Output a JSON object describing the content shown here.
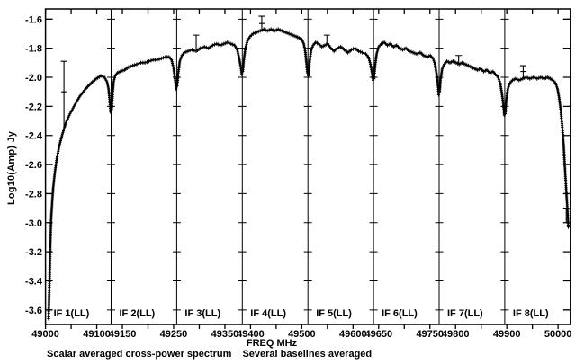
{
  "chart_data": {
    "type": "line",
    "title": "Scalar averaged cross-power spectrum   Several baselines averaged",
    "caption_left": "Scalar averaged cross-power spectrum",
    "caption_right": "Several baselines averaged",
    "xlabel": "FREQ MHz",
    "ylabel": "Log10(Amp) Jy",
    "xlim": [
      49000,
      50024
    ],
    "ylim": [
      -3.7,
      -1.53
    ],
    "grid": "vertical IF-band separator lines with y-level ticks",
    "legend": "none",
    "marker_style": "dense plus-sign channel markers forming a thick black trace",
    "colors": {
      "foreground": "#000000",
      "background": "#ffffff"
    },
    "y_ticks": [
      "-1.6",
      "-1.8",
      "-2.0",
      "-2.2",
      "-2.4",
      "-2.6",
      "-2.8",
      "-3.0",
      "-3.2",
      "-3.4",
      "-3.6"
    ],
    "x_ticks": [
      {
        "f": 49000,
        "label": "49000"
      },
      {
        "f": 49050,
        "label": ""
      },
      {
        "f": 49100,
        "label": "49100"
      },
      {
        "f": 49150,
        "label": "49150"
      },
      {
        "f": 49200,
        "label": ""
      },
      {
        "f": 49250,
        "label": "49250"
      },
      {
        "f": 49300,
        "label": ""
      },
      {
        "f": 49350,
        "label": "49350"
      },
      {
        "f": 49400,
        "label": "49400"
      },
      {
        "f": 49450,
        "label": ""
      },
      {
        "f": 49500,
        "label": "49500"
      },
      {
        "f": 49550,
        "label": ""
      },
      {
        "f": 49600,
        "label": "49600"
      },
      {
        "f": 49650,
        "label": "49650"
      },
      {
        "f": 49700,
        "label": ""
      },
      {
        "f": 49750,
        "label": "49750"
      },
      {
        "f": 49800,
        "label": "49800"
      },
      {
        "f": 49850,
        "label": ""
      },
      {
        "f": 49900,
        "label": "49900"
      },
      {
        "f": 49950,
        "label": ""
      },
      {
        "f": 50000,
        "label": "50000"
      }
    ],
    "if_bands": [
      {
        "name": "IF 1(LL)",
        "f_start": 49000,
        "f_end": 49128,
        "points": [
          [
            49006,
            -3.66
          ],
          [
            49007,
            -3.52
          ],
          [
            49008,
            -3.38
          ],
          [
            49009,
            -3.22
          ],
          [
            49010,
            -3.08
          ],
          [
            49011,
            -2.97
          ],
          [
            49013,
            -2.86
          ],
          [
            49015,
            -2.76
          ],
          [
            49018,
            -2.66
          ],
          [
            49022,
            -2.56
          ],
          [
            49027,
            -2.47
          ],
          [
            49033,
            -2.39
          ],
          [
            49040,
            -2.31
          ],
          [
            49048,
            -2.25
          ],
          [
            49057,
            -2.19
          ],
          [
            49067,
            -2.13
          ],
          [
            49078,
            -2.08
          ],
          [
            49089,
            -2.04
          ],
          [
            49099,
            -2.01
          ],
          [
            49108,
            -1.99
          ],
          [
            49115,
            -2.0
          ],
          [
            49120,
            -2.03
          ],
          [
            49123,
            -2.08
          ],
          [
            49125,
            -2.15
          ],
          [
            49127,
            -2.24
          ]
        ]
      },
      {
        "name": "IF 2(LL)",
        "f_start": 49128,
        "f_end": 49256,
        "points": [
          [
            49129,
            -2.23
          ],
          [
            49131,
            -2.12
          ],
          [
            49133,
            -2.03
          ],
          [
            49136,
            -1.99
          ],
          [
            49140,
            -1.97
          ],
          [
            49146,
            -1.96
          ],
          [
            49154,
            -1.95
          ],
          [
            49162,
            -1.93
          ],
          [
            49170,
            -1.92
          ],
          [
            49178,
            -1.91
          ],
          [
            49186,
            -1.9
          ],
          [
            49194,
            -1.9
          ],
          [
            49202,
            -1.89
          ],
          [
            49210,
            -1.88
          ],
          [
            49218,
            -1.88
          ],
          [
            49226,
            -1.87
          ],
          [
            49234,
            -1.86
          ],
          [
            49241,
            -1.86
          ],
          [
            49246,
            -1.88
          ],
          [
            49250,
            -1.94
          ],
          [
            49253,
            -2.02
          ],
          [
            49255,
            -2.08
          ]
        ]
      },
      {
        "name": "IF 3(LL)",
        "f_start": 49256,
        "f_end": 49384,
        "points": [
          [
            49257,
            -2.06
          ],
          [
            49259,
            -1.97
          ],
          [
            49262,
            -1.89
          ],
          [
            49266,
            -1.85
          ],
          [
            49271,
            -1.83
          ],
          [
            49278,
            -1.82
          ],
          [
            49286,
            -1.81
          ],
          [
            49294,
            -1.82
          ],
          [
            49302,
            -1.8
          ],
          [
            49310,
            -1.79
          ],
          [
            49318,
            -1.8
          ],
          [
            49326,
            -1.78
          ],
          [
            49334,
            -1.77
          ],
          [
            49341,
            -1.78
          ],
          [
            49348,
            -1.77
          ],
          [
            49355,
            -1.76
          ],
          [
            49362,
            -1.77
          ],
          [
            49369,
            -1.78
          ],
          [
            49374,
            -1.81
          ],
          [
            49378,
            -1.87
          ],
          [
            49381,
            -1.93
          ],
          [
            49383,
            -1.98
          ]
        ]
      },
      {
        "name": "IF 4(LL)",
        "f_start": 49384,
        "f_end": 49512,
        "points": [
          [
            49385,
            -1.96
          ],
          [
            49387,
            -1.88
          ],
          [
            49390,
            -1.8
          ],
          [
            49394,
            -1.75
          ],
          [
            49399,
            -1.72
          ],
          [
            49405,
            -1.7
          ],
          [
            49412,
            -1.69
          ],
          [
            49419,
            -1.68
          ],
          [
            49426,
            -1.67
          ],
          [
            49433,
            -1.68
          ],
          [
            49440,
            -1.67
          ],
          [
            49447,
            -1.68
          ],
          [
            49454,
            -1.67
          ],
          [
            49461,
            -1.68
          ],
          [
            49468,
            -1.69
          ],
          [
            49475,
            -1.7
          ],
          [
            49482,
            -1.71
          ],
          [
            49489,
            -1.72
          ],
          [
            49495,
            -1.73
          ],
          [
            49500,
            -1.74
          ],
          [
            49504,
            -1.77
          ],
          [
            49507,
            -1.83
          ],
          [
            49509,
            -1.9
          ],
          [
            49511,
            -1.97
          ]
        ]
      },
      {
        "name": "IF 5(LL)",
        "f_start": 49512,
        "f_end": 49640,
        "points": [
          [
            49513,
            -1.99
          ],
          [
            49515,
            -1.9
          ],
          [
            49518,
            -1.82
          ],
          [
            49522,
            -1.78
          ],
          [
            49527,
            -1.76
          ],
          [
            49533,
            -1.77
          ],
          [
            49539,
            -1.79
          ],
          [
            49545,
            -1.78
          ],
          [
            49551,
            -1.77
          ],
          [
            49557,
            -1.8
          ],
          [
            49563,
            -1.82
          ],
          [
            49569,
            -1.8
          ],
          [
            49576,
            -1.79
          ],
          [
            49583,
            -1.81
          ],
          [
            49590,
            -1.83
          ],
          [
            49597,
            -1.81
          ],
          [
            49604,
            -1.8
          ],
          [
            49611,
            -1.82
          ],
          [
            49618,
            -1.83
          ],
          [
            49625,
            -1.84
          ],
          [
            49630,
            -1.86
          ],
          [
            49634,
            -1.91
          ],
          [
            49637,
            -1.97
          ],
          [
            49639,
            -2.02
          ]
        ]
      },
      {
        "name": "IF 6(LL)",
        "f_start": 49640,
        "f_end": 49768,
        "points": [
          [
            49641,
            -2.01
          ],
          [
            49643,
            -1.92
          ],
          [
            49646,
            -1.84
          ],
          [
            49650,
            -1.79
          ],
          [
            49655,
            -1.77
          ],
          [
            49661,
            -1.76
          ],
          [
            49667,
            -1.78
          ],
          [
            49673,
            -1.77
          ],
          [
            49679,
            -1.79
          ],
          [
            49685,
            -1.78
          ],
          [
            49691,
            -1.8
          ],
          [
            49697,
            -1.81
          ],
          [
            49703,
            -1.8
          ],
          [
            49710,
            -1.82
          ],
          [
            49717,
            -1.83
          ],
          [
            49724,
            -1.84
          ],
          [
            49731,
            -1.83
          ],
          [
            49738,
            -1.85
          ],
          [
            49745,
            -1.86
          ],
          [
            49751,
            -1.85
          ],
          [
            49756,
            -1.87
          ],
          [
            49760,
            -1.91
          ],
          [
            49763,
            -1.98
          ],
          [
            49766,
            -2.07
          ],
          [
            49767,
            -2.12
          ]
        ]
      },
      {
        "name": "IF 7(LL)",
        "f_start": 49768,
        "f_end": 49896,
        "points": [
          [
            49769,
            -2.1
          ],
          [
            49771,
            -2.01
          ],
          [
            49774,
            -1.94
          ],
          [
            49778,
            -1.91
          ],
          [
            49783,
            -1.89
          ],
          [
            49789,
            -1.9
          ],
          [
            49795,
            -1.89
          ],
          [
            49801,
            -1.9
          ],
          [
            49807,
            -1.91
          ],
          [
            49813,
            -1.9
          ],
          [
            49819,
            -1.91
          ],
          [
            49825,
            -1.92
          ],
          [
            49831,
            -1.93
          ],
          [
            49837,
            -1.94
          ],
          [
            49843,
            -1.95
          ],
          [
            49849,
            -1.94
          ],
          [
            49855,
            -1.96
          ],
          [
            49861,
            -1.95
          ],
          [
            49867,
            -1.97
          ],
          [
            49873,
            -1.96
          ],
          [
            49878,
            -1.98
          ],
          [
            49883,
            -2.0
          ],
          [
            49887,
            -2.04
          ],
          [
            49890,
            -2.1
          ],
          [
            49893,
            -2.18
          ],
          [
            49895,
            -2.26
          ]
        ]
      },
      {
        "name": "IF 8(LL)",
        "f_start": 49896,
        "f_end": 50024,
        "points": [
          [
            49897,
            -2.25
          ],
          [
            49899,
            -2.16
          ],
          [
            49902,
            -2.08
          ],
          [
            49906,
            -2.04
          ],
          [
            49911,
            -2.02
          ],
          [
            49917,
            -2.01
          ],
          [
            49924,
            -2.02
          ],
          [
            49931,
            -2.01
          ],
          [
            49938,
            -2.0
          ],
          [
            49945,
            -2.01
          ],
          [
            49952,
            -2.0
          ],
          [
            49959,
            -2.01
          ],
          [
            49966,
            -2.0
          ],
          [
            49973,
            -2.01
          ],
          [
            49979,
            -2.0
          ],
          [
            49985,
            -2.01
          ],
          [
            49990,
            -2.02
          ],
          [
            49995,
            -2.04
          ],
          [
            49999,
            -2.08
          ],
          [
            50002,
            -2.14
          ],
          [
            50005,
            -2.22
          ],
          [
            50008,
            -2.33
          ],
          [
            50011,
            -2.47
          ],
          [
            50013,
            -2.6
          ],
          [
            50015,
            -2.72
          ],
          [
            50017,
            -2.84
          ],
          [
            50019,
            -2.95
          ],
          [
            50020,
            -3.03
          ]
        ]
      }
    ],
    "error_bars": [
      {
        "f": 49036,
        "lo": -2.37,
        "hi": -1.89,
        "mid": -2.1
      },
      {
        "f": 49294,
        "lo": -1.82,
        "hi": -1.71
      },
      {
        "f": 49422,
        "lo": -1.67,
        "hi": -1.58,
        "mid": -1.63
      },
      {
        "f": 49549,
        "lo": -1.78,
        "hi": -1.71
      },
      {
        "f": 49806,
        "lo": -1.91,
        "hi": -1.85
      },
      {
        "f": 49932,
        "lo": -2.01,
        "hi": -1.92,
        "mid": -1.96
      },
      {
        "f": 50016,
        "lo": -3.0,
        "hi": -2.9
      }
    ]
  }
}
